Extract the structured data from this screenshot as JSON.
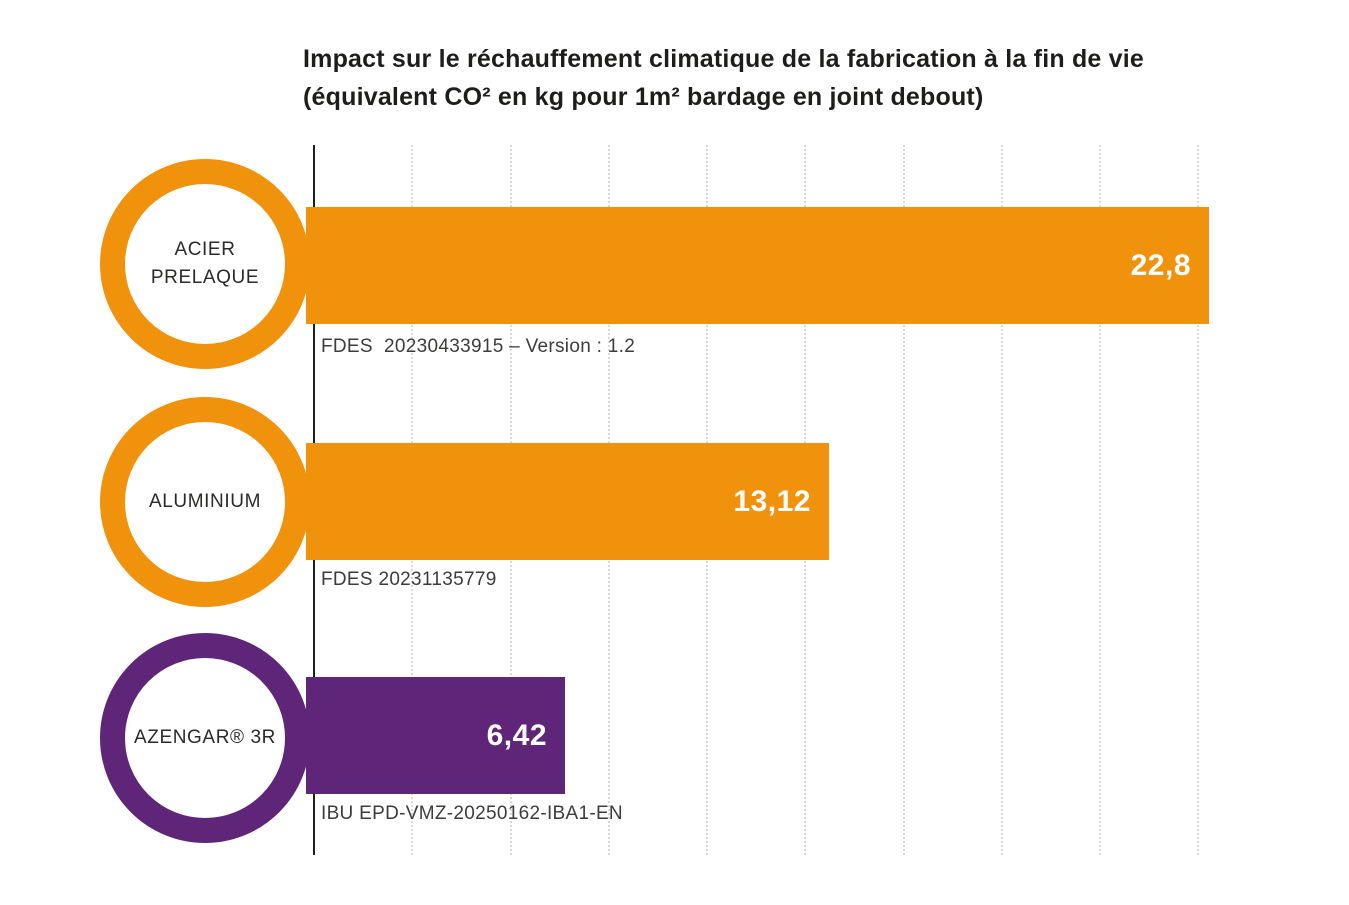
{
  "title": {
    "line1": "Impact sur le réchauffement climatique de la fabrication à la fin de vie",
    "line2": "(équivalent CO² en kg pour 1m² bardage en joint debout)"
  },
  "chart_data": {
    "type": "bar",
    "orientation": "horizontal",
    "title": "Impact sur le réchauffement climatique de la fabrication à la fin de vie (équivalent CO² en kg pour 1m² bardage en joint debout)",
    "categories": [
      "ACIER PRELAQUE",
      "ALUMINIUM",
      "AZENGAR® 3R"
    ],
    "values": [
      22.8,
      13.12,
      6.42
    ],
    "value_labels": [
      "22,8",
      "13,12",
      "6,42"
    ],
    "annotations": [
      "FDES  20230433915 – Version : 1.2",
      "FDES 20231135779",
      "IBU EPD-VMZ-20250162-IBA1-EN"
    ],
    "bar_colors": [
      "#F1920C",
      "#F1920C",
      "#5F2579"
    ],
    "axis": {
      "min": 0,
      "max": 22.8,
      "gridline_interval": 2.5,
      "gridline_count": 9,
      "grid_style": "dotted-vertical"
    },
    "legend": "none",
    "value_labels_position": "inside-end"
  },
  "rows": [
    {
      "label": "ACIER\nPRELAQUE",
      "value": 22.8,
      "value_label": "22,8",
      "annotation": "FDES  20230433915 – Version : 1.2",
      "color": "#F1920C"
    },
    {
      "label": "ALUMINIUM",
      "value": 13.12,
      "value_label": "13,12",
      "annotation": "FDES 20231135779",
      "color": "#F1920C"
    },
    {
      "label": "AZENGAR® 3R",
      "value": 6.42,
      "value_label": "6,42",
      "annotation": "IBU EPD-VMZ-20250162-IBA1-EN",
      "color": "#5F2579"
    }
  ],
  "colors": {
    "orange": "#F1920C",
    "purple": "#5F2579",
    "axis_line": "#1d1d1b",
    "gridline": "#d8d8d6",
    "title_text": "#1d1d1b",
    "annotation_text": "#3c3c3b",
    "value_text": "#ffffff",
    "background": "#ffffff"
  }
}
